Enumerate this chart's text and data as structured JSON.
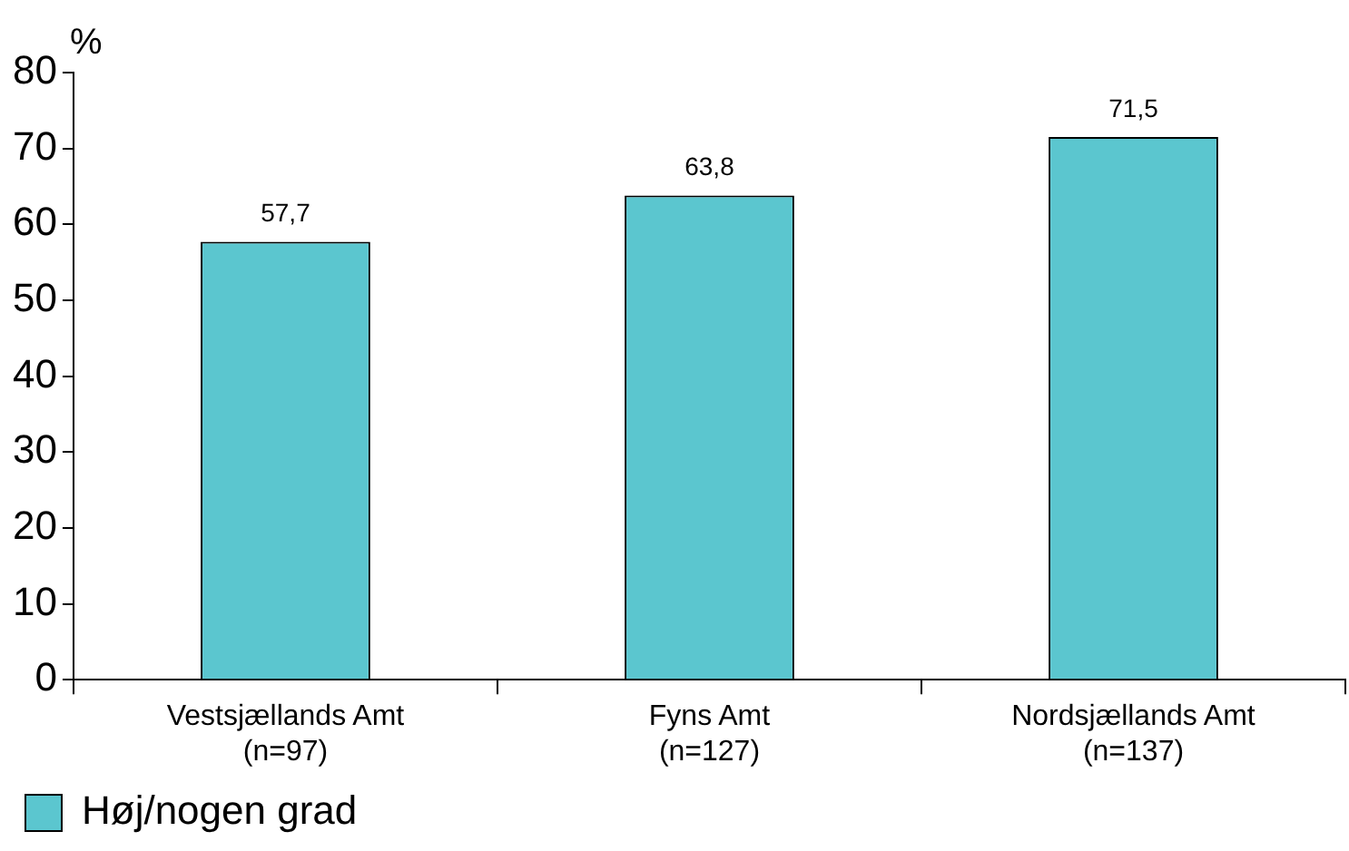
{
  "chart_data": {
    "type": "bar",
    "ylabel": "%",
    "categories": [
      "Vestsjællands Amt\n(n=97)",
      "Fyns Amt\n(n=127)",
      "Nordsjællands Amt\n(n=137)"
    ],
    "series": [
      {
        "name": "Høj/nogen grad",
        "color": "#5bc6cf",
        "values": [
          57.7,
          63.8,
          71.5
        ],
        "value_labels": [
          "57,7",
          "63,8",
          "71,5"
        ]
      }
    ],
    "ylim": [
      0,
      80
    ],
    "yticks": [
      0,
      10,
      20,
      30,
      40,
      50,
      60,
      70,
      80
    ],
    "grid": false,
    "legend": "bottom left"
  }
}
